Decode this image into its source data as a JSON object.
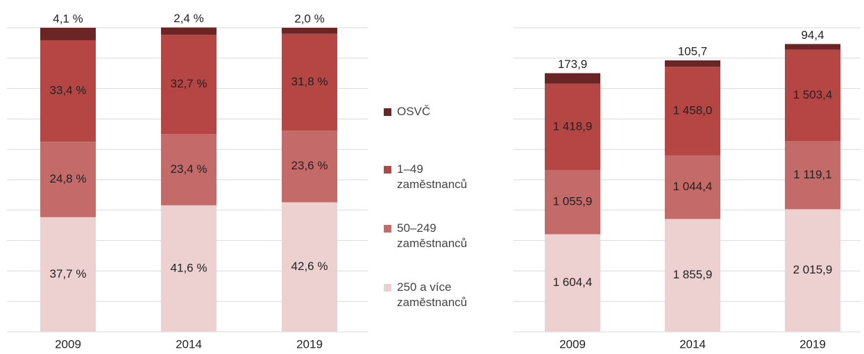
{
  "chart_data": [
    {
      "type": "stacked_bar",
      "categories": [
        "2009",
        "2014",
        "2019"
      ],
      "series": [
        {
          "name": "OSVČ",
          "color": "#6b2525",
          "values": [
            4.1,
            2.4,
            2.0
          ],
          "value_labels": [
            "4,1 %",
            "2,4 %",
            "2,0 %"
          ]
        },
        {
          "name": "1–49 zaměstnanců",
          "color": "#b54644",
          "values": [
            33.4,
            32.7,
            31.8
          ],
          "value_labels": [
            "33,4 %",
            "32,7 %",
            "31,8 %"
          ]
        },
        {
          "name": "50–249 zaměstnanců",
          "color": "#c46a68",
          "values": [
            24.8,
            23.4,
            23.6
          ],
          "value_labels": [
            "24,8 %",
            "23,4 %",
            "23,6 %"
          ]
        },
        {
          "name": "250 a více zaměstnanců",
          "color": "#edd0d0",
          "values": [
            37.7,
            41.6,
            42.6
          ],
          "value_labels": [
            "37,7 %",
            "41,6 %",
            "42,6 %"
          ]
        }
      ],
      "ylim": [
        0,
        100
      ],
      "yticks": [
        0,
        10,
        20,
        30,
        40,
        50,
        60,
        70,
        80,
        90,
        100
      ],
      "grid": true
    },
    {
      "type": "stacked_bar",
      "categories": [
        "2009",
        "2014",
        "2019"
      ],
      "series": [
        {
          "color": "#6b2525",
          "values": [
            173.9,
            105.7,
            94.4
          ],
          "value_labels": [
            "173,9",
            "105,7",
            "94,4"
          ]
        },
        {
          "color": "#b54644",
          "values": [
            1418.9,
            1458.0,
            1503.4
          ],
          "value_labels": [
            "1 418,9",
            "1 458,0",
            "1 503,4"
          ]
        },
        {
          "color": "#c46a68",
          "values": [
            1055.9,
            1044.4,
            1119.1
          ],
          "value_labels": [
            "1 055,9",
            "1 044,4",
            "1 119,1"
          ]
        },
        {
          "color": "#edd0d0",
          "values": [
            1604.4,
            1855.9,
            2015.9
          ],
          "value_labels": [
            "1 604,4",
            "1 855,9",
            "2 015,9"
          ]
        }
      ],
      "ylim": [
        0,
        5000
      ],
      "yticks": [
        0,
        500,
        1000,
        1500,
        2000,
        2500,
        3000,
        3500,
        4000,
        4500,
        5000
      ],
      "grid": true
    }
  ]
}
